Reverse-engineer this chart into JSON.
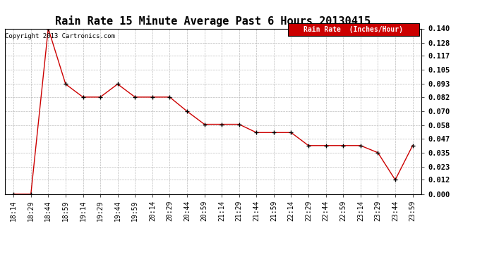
{
  "title": "Rain Rate 15 Minute Average Past 6 Hours 20130415",
  "copyright": "Copyright 2013 Cartronics.com",
  "legend_label": "Rain Rate  (Inches/Hour)",
  "x_labels": [
    "18:14",
    "18:29",
    "18:44",
    "18:59",
    "19:14",
    "19:29",
    "19:44",
    "19:59",
    "20:14",
    "20:29",
    "20:44",
    "20:59",
    "21:14",
    "21:29",
    "21:44",
    "21:59",
    "22:14",
    "22:29",
    "22:44",
    "22:59",
    "23:14",
    "23:29",
    "23:44",
    "23:59"
  ],
  "y_values": [
    0.0,
    0.0,
    0.14,
    0.093,
    0.082,
    0.082,
    0.093,
    0.082,
    0.082,
    0.082,
    0.07,
    0.059,
    0.059,
    0.059,
    0.052,
    0.052,
    0.052,
    0.041,
    0.041,
    0.041,
    0.041,
    0.035,
    0.012,
    0.041
  ],
  "ylim": [
    0.0,
    0.14
  ],
  "yticks": [
    0.0,
    0.012,
    0.023,
    0.035,
    0.047,
    0.058,
    0.07,
    0.082,
    0.093,
    0.105,
    0.117,
    0.128,
    0.14
  ],
  "line_color": "#cc0000",
  "marker_color": "#000000",
  "bg_color": "#ffffff",
  "grid_color": "#aaaaaa",
  "title_fontsize": 11,
  "copyright_fontsize": 6.5,
  "tick_fontsize": 7,
  "legend_bg": "#cc0000",
  "legend_text_color": "#ffffff",
  "legend_fontsize": 7
}
